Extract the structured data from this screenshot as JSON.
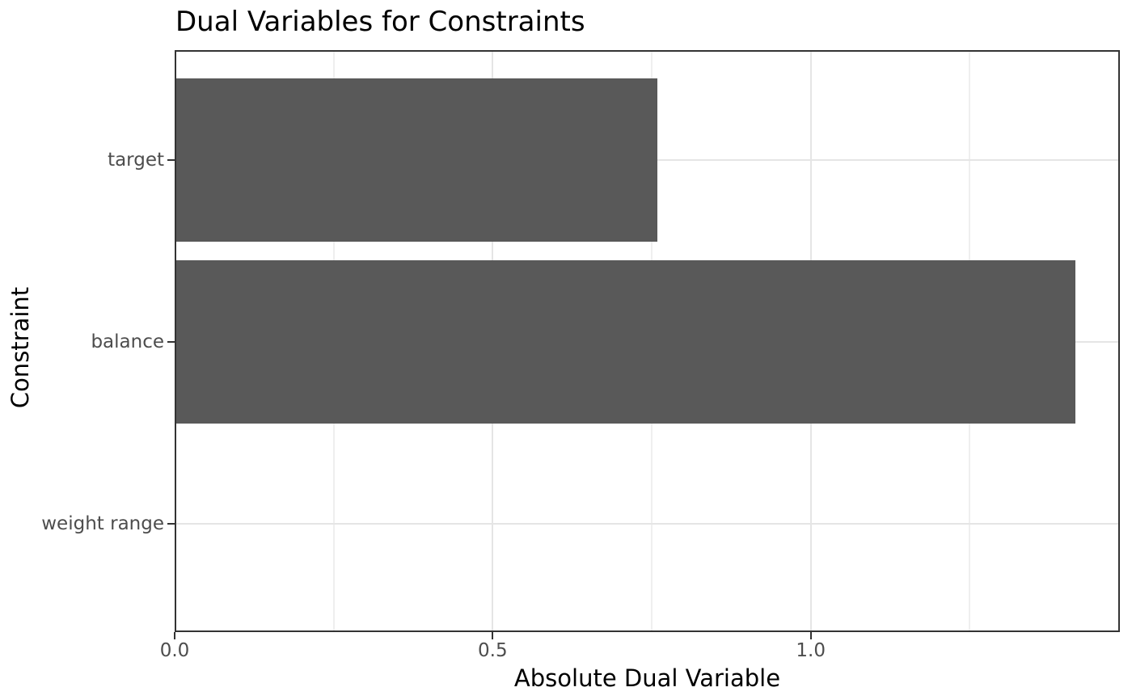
{
  "chart_data": {
    "type": "bar",
    "orientation": "horizontal",
    "title": "Dual Variables for Constraints",
    "xlabel": "Absolute Dual Variable",
    "ylabel": "Constraint",
    "categories": [
      "target",
      "balance",
      "weight range"
    ],
    "values": [
      0.759,
      1.416,
      0.0
    ],
    "xlim": [
      0,
      1.486
    ],
    "x_major_ticks": [
      0.0,
      0.5,
      1.0
    ],
    "x_tick_labels": [
      "0.0",
      "0.5",
      "1.0"
    ],
    "x_minor_gridlines": [
      0.25,
      0.75,
      1.25
    ],
    "grid": true,
    "legend": false,
    "colors": {
      "bar_fill": "#595959",
      "panel_border": "#333333",
      "grid_major": "#e5e5e5",
      "grid_minor": "#efefef",
      "tick_label": "#4d4d4d",
      "axis_text": "#000000",
      "background": "#ffffff"
    }
  }
}
